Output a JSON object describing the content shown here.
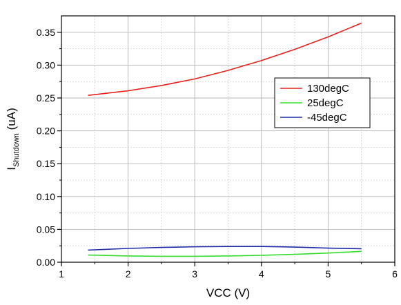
{
  "chart_data": {
    "type": "line",
    "title": "",
    "xlabel": "VCC (V)",
    "ylabel": {
      "main": "I",
      "subscript": "Shutdown",
      "unit": " (uA)"
    },
    "xlim": [
      1,
      6
    ],
    "ylim": [
      0,
      0.375
    ],
    "xticks": [
      1,
      2,
      3,
      4,
      5,
      6
    ],
    "xtick_labels": [
      "1",
      "2",
      "3",
      "4",
      "5",
      "6"
    ],
    "yticks": [
      0,
      0.05,
      0.1,
      0.15,
      0.2,
      0.25,
      0.3,
      0.35
    ],
    "ytick_labels": [
      "0.00",
      "0.05",
      "0.10",
      "0.15",
      "0.20",
      "0.25",
      "0.30",
      "0.35"
    ],
    "grid": true,
    "legend_position": "top-right",
    "series": [
      {
        "name": "130degC",
        "color": "#e8201a",
        "x": [
          1.4,
          2.0,
          2.5,
          3.0,
          3.5,
          4.0,
          4.5,
          5.0,
          5.5
        ],
        "y": [
          0.254,
          0.261,
          0.269,
          0.279,
          0.292,
          0.307,
          0.324,
          0.343,
          0.364
        ]
      },
      {
        "name": "25degC",
        "color": "#33dd2a",
        "x": [
          1.4,
          2.0,
          2.5,
          3.0,
          3.5,
          4.0,
          4.5,
          5.0,
          5.5
        ],
        "y": [
          0.011,
          0.0095,
          0.009,
          0.009,
          0.0095,
          0.0105,
          0.012,
          0.014,
          0.0165
        ]
      },
      {
        "name": "-45degC",
        "color": "#1c2aa8",
        "x": [
          1.4,
          2.0,
          2.5,
          3.0,
          3.5,
          4.0,
          4.5,
          5.0,
          5.5
        ],
        "y": [
          0.0185,
          0.021,
          0.0225,
          0.0235,
          0.024,
          0.024,
          0.023,
          0.0215,
          0.0205
        ]
      }
    ]
  }
}
